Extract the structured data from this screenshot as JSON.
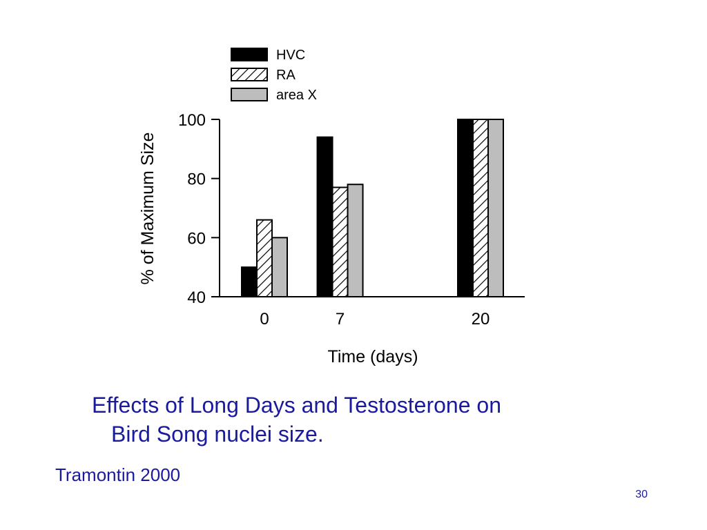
{
  "slide": {
    "caption_line1": "Effects of Long Days and Testosterone on",
    "caption_line2": "Bird Song nuclei size.",
    "citation": "Tramontin 2000",
    "slide_number": "30",
    "caption_color": "#1a1a9c"
  },
  "chart_data": {
    "type": "bar",
    "title": "",
    "xlabel": "Time (days)",
    "ylabel": "% of Maximum Size",
    "x": [
      0,
      7,
      20
    ],
    "categories": [
      "0",
      "7",
      "20"
    ],
    "ylim": [
      40,
      100
    ],
    "yticks": [
      40,
      60,
      80,
      100
    ],
    "grid": false,
    "legend_position": "top-left",
    "series": [
      {
        "name": "HVC",
        "values": [
          50,
          94,
          100
        ],
        "fill": "#000000",
        "pattern": "solid"
      },
      {
        "name": "RA",
        "values": [
          66,
          77,
          100
        ],
        "fill": "#ffffff",
        "pattern": "hatch"
      },
      {
        "name": "area X",
        "values": [
          60,
          78,
          100
        ],
        "fill": "#bdbdbd",
        "pattern": "solid"
      }
    ]
  }
}
